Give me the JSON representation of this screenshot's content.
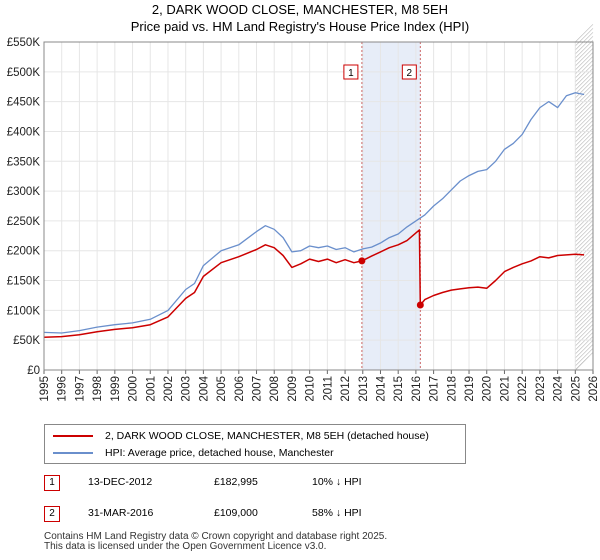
{
  "title_line1": "2, DARK WOOD CLOSE, MANCHESTER, M8 5EH",
  "title_line2": "Price paid vs. HM Land Registry's House Price Index (HPI)",
  "legend": [
    {
      "label": "2, DARK WOOD CLOSE, MANCHESTER, M8 5EH (detached house)",
      "color": "#cc0000"
    },
    {
      "label": "HPI: Average price, detached house, Manchester",
      "color": "#6a8fcc"
    }
  ],
  "transactions": [
    {
      "num": "1",
      "date": "13-DEC-2012",
      "price": "£182,995",
      "hpi": "10% ↓ HPI"
    },
    {
      "num": "2",
      "date": "31-MAR-2016",
      "price": "£109,000",
      "hpi": "58% ↓ HPI"
    }
  ],
  "footer_line1": "Contains HM Land Registry data © Crown copyright and database right 2025.",
  "footer_line2": "This data is licensed under the Open Government Licence v3.0.",
  "chart_data": {
    "type": "line",
    "title": "Price paid vs. HM Land Registry's House Price Index (HPI)",
    "xlim": [
      1995,
      2026
    ],
    "ylim": [
      0,
      550000
    ],
    "x_ticks": [
      1995,
      1996,
      1997,
      1998,
      1999,
      2000,
      2001,
      2002,
      2003,
      2004,
      2005,
      2006,
      2007,
      2008,
      2009,
      2010,
      2011,
      2012,
      2013,
      2014,
      2015,
      2016,
      2017,
      2018,
      2019,
      2020,
      2021,
      2022,
      2023,
      2024,
      2025,
      2026
    ],
    "y_ticks": [
      0,
      50000,
      100000,
      150000,
      200000,
      250000,
      300000,
      350000,
      400000,
      450000,
      500000,
      550000
    ],
    "y_tick_labels": [
      "£0",
      "£50K",
      "£100K",
      "£150K",
      "£200K",
      "£250K",
      "£300K",
      "£350K",
      "£400K",
      "£450K",
      "£500K",
      "£550K"
    ],
    "shaded_range": [
      2012.95,
      2016.25
    ],
    "forecast_start": 2025.0,
    "markers": [
      {
        "label": "1",
        "x": 2012.95,
        "y": 182995
      },
      {
        "label": "2",
        "x": 2016.25,
        "y": 109000
      }
    ],
    "series": [
      {
        "name": "HPI: Average price, detached house, Manchester",
        "color": "#6a8fcc",
        "x": [
          1995,
          1996,
          1997,
          1998,
          1999,
          2000,
          2001,
          2002,
          2003,
          2003.5,
          2004,
          2005,
          2006,
          2007,
          2007.5,
          2008,
          2008.5,
          2009,
          2009.5,
          2010,
          2010.5,
          2011,
          2011.5,
          2012,
          2012.5,
          2013,
          2013.5,
          2014,
          2014.5,
          2015,
          2015.5,
          2016,
          2016.5,
          2017,
          2017.5,
          2018,
          2018.5,
          2019,
          2019.5,
          2020,
          2020.5,
          2021,
          2021.5,
          2022,
          2022.5,
          2023,
          2023.5,
          2024,
          2024.5,
          2025,
          2025.5
        ],
        "values": [
          63000,
          62000,
          66000,
          72000,
          76000,
          79000,
          85000,
          100000,
          135000,
          145000,
          175000,
          200000,
          210000,
          232000,
          242000,
          236000,
          222000,
          198000,
          200000,
          208000,
          205000,
          208000,
          202000,
          205000,
          198000,
          203000,
          206000,
          213000,
          222000,
          228000,
          240000,
          250000,
          260000,
          275000,
          287000,
          302000,
          317000,
          326000,
          333000,
          336000,
          350000,
          370000,
          380000,
          395000,
          420000,
          440000,
          450000,
          440000,
          460000,
          465000,
          462000
        ]
      },
      {
        "name": "2, DARK WOOD CLOSE, MANCHESTER, M8 5EH (detached house)",
        "color": "#cc0000",
        "x": [
          1995,
          1996,
          1997,
          1998,
          1999,
          2000,
          2001,
          2002,
          2003,
          2003.5,
          2004,
          2005,
          2006,
          2007,
          2007.5,
          2008,
          2008.5,
          2009,
          2009.5,
          2010,
          2010.5,
          2011,
          2011.5,
          2012,
          2012.5,
          2012.95,
          2013.5,
          2014,
          2014.5,
          2015,
          2015.5,
          2016.2,
          2016.25,
          2016.5,
          2017,
          2017.5,
          2018,
          2018.5,
          2019,
          2019.5,
          2020,
          2020.5,
          2021,
          2021.5,
          2022,
          2022.5,
          2023,
          2023.5,
          2024,
          2024.5,
          2025,
          2025.5
        ],
        "values": [
          55000,
          56000,
          59000,
          64000,
          68000,
          71000,
          76000,
          89000,
          120000,
          130000,
          157000,
          180000,
          190000,
          202000,
          210000,
          205000,
          192000,
          172000,
          178000,
          186000,
          182000,
          186000,
          180000,
          185000,
          180000,
          182995,
          191000,
          198000,
          205000,
          210000,
          217000,
          235000,
          109000,
          118000,
          125000,
          130000,
          134000,
          136000,
          138000,
          139000,
          137000,
          150000,
          165000,
          172000,
          178000,
          183000,
          190000,
          188000,
          192000,
          193000,
          194000,
          193000
        ]
      }
    ]
  }
}
